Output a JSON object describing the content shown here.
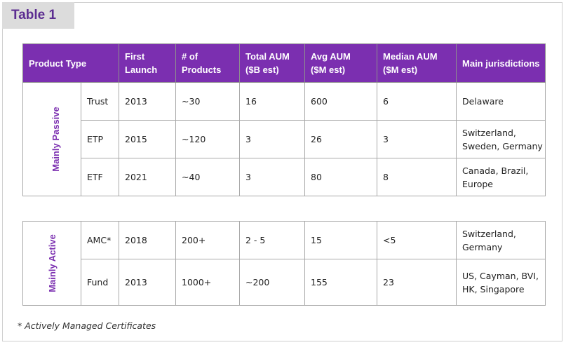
{
  "title": "Table 1",
  "headers": {
    "product_type": "Product Type",
    "first_launch": [
      "First",
      "Launch"
    ],
    "num_products": [
      "# of",
      "Products"
    ],
    "total_aum": [
      "Total AUM",
      "($B est)"
    ],
    "avg_aum": [
      "Avg AUM",
      "($M est)"
    ],
    "median_aum": [
      "Median AUM",
      "($M est)"
    ],
    "jurisdictions": "Main jurisdictions"
  },
  "passive": {
    "label": "Mainly Passive",
    "rows": [
      {
        "type": "Trust",
        "launch": "2013",
        "products": "~30",
        "total": "16",
        "avg": "600",
        "median": "6",
        "jur": [
          "Delaware"
        ]
      },
      {
        "type": "ETP",
        "launch": "2015",
        "products": "~120",
        "total": "3",
        "avg": "26",
        "median": "3",
        "jur": [
          "Switzerland,",
          "Sweden, Germany"
        ]
      },
      {
        "type": "ETF",
        "launch": "2021",
        "products": "~40",
        "total": "3",
        "avg": "80",
        "median": "8",
        "jur": [
          "Canada, Brazil,",
          "Europe"
        ]
      }
    ]
  },
  "active": {
    "label": "Mainly Active",
    "rows": [
      {
        "type": "AMC*",
        "launch": "2018",
        "products": "200+",
        "total": "2 - 5",
        "avg": "15",
        "median": "<5",
        "jur": [
          "Switzerland,",
          "Germany"
        ]
      },
      {
        "type": "Fund",
        "launch": "2013",
        "products": "1000+",
        "total": "~200",
        "avg": "155",
        "median": "23",
        "jur": [
          "US, Cayman, BVI,",
          "HK, Singapore"
        ]
      }
    ]
  },
  "footnote": "* Actively Managed Certificates"
}
